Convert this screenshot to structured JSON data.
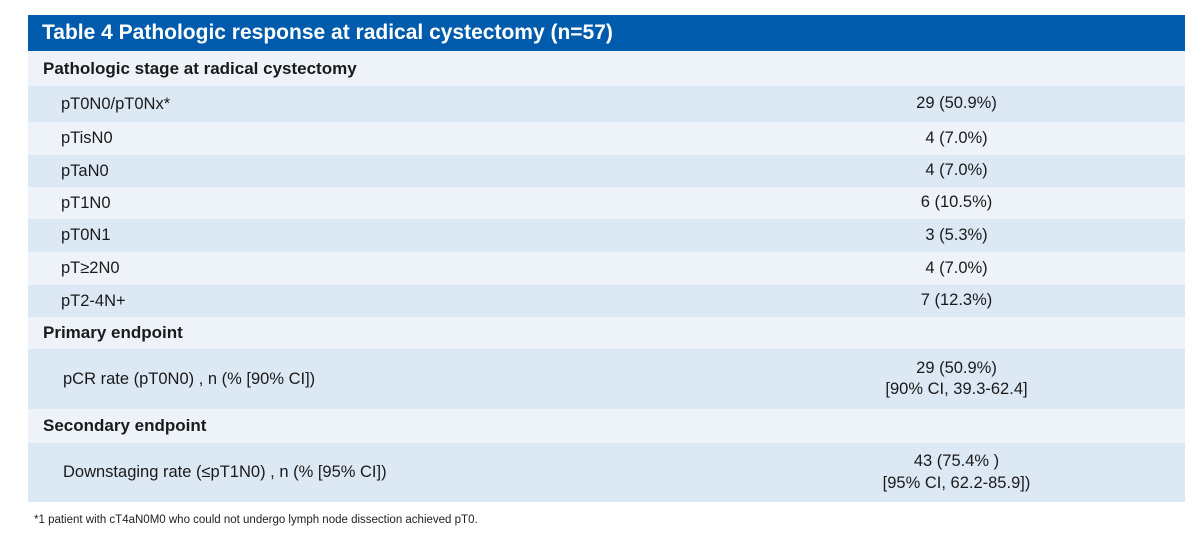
{
  "table": {
    "title": "Table 4 Pathologic response at radical cystectomy (n=57)",
    "sections": [
      {
        "heading": "Pathologic stage at radical cystectomy",
        "rows": [
          {
            "label": "pT0N0/pT0Nx*",
            "value": "29 (50.9%)"
          },
          {
            "label": "pTisN0",
            "value": "4 (7.0%)"
          },
          {
            "label": "pTaN0",
            "value": "4 (7.0%)"
          },
          {
            "label": "pT1N0",
            "value": "6 (10.5%)"
          },
          {
            "label": "pT0N1",
            "value": "3 (5.3%)"
          },
          {
            "label": "pT≥2N0",
            "value": "4 (7.0%)"
          },
          {
            "label": "pT2-4N+",
            "value": "7 (12.3%)"
          }
        ]
      },
      {
        "heading": "Primary endpoint",
        "rows": [
          {
            "label": "pCR  rate (pT0N0) , n (% [90% CI])",
            "value_line1": "29 (50.9%)",
            "value_line2": "[90% CI, 39.3-62.4]"
          }
        ]
      },
      {
        "heading": "Secondary endpoint",
        "rows": [
          {
            "label": "Downstaging rate (≤pT1N0) , n (% [95% CI])",
            "value_line1": "43 (75.4% )",
            "value_line2": "[95% CI, 62.2-85.9])"
          }
        ]
      }
    ],
    "footnote": "*1 patient with cT4aN0M0 who could not undergo lymph node dissection achieved pT0."
  }
}
